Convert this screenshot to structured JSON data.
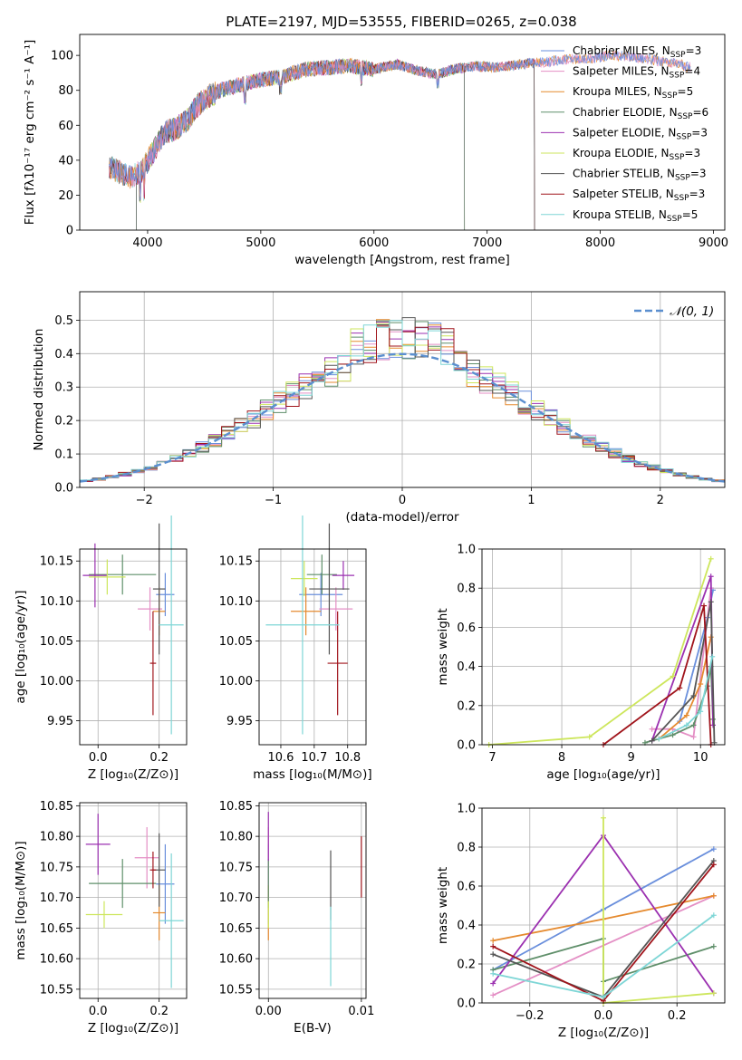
{
  "colors": {
    "Chabrier MILES": "#6a8fdc",
    "Salpeter MILES": "#e48fc5",
    "Kroupa MILES": "#e58a2f",
    "Chabrier ELODIE": "#5f8f6a",
    "Salpeter ELODIE": "#9b30b0",
    "Kroupa ELODIE": "#cde65c",
    "Chabrier STELIB": "#555555",
    "Salpeter STELIB": "#a0141b",
    "Kroupa STELIB": "#7ed6d6",
    "normal": "#5b8fcf"
  },
  "chart_data": [
    {
      "type": "line",
      "title": "PLATE=2197, MJD=53555, FIBERID=0265, z=0.038",
      "xlabel": "wavelength [Angstrom, rest frame]",
      "ylabel": "Flux [fλ10⁻¹⁷ erg cm⁻² s⁻¹ A⁻¹]",
      "xlim": [
        3400,
        9100
      ],
      "ylim": [
        0,
        112
      ],
      "xticks": [
        4000,
        5000,
        6000,
        7000,
        8000,
        9000
      ],
      "yticks": [
        0,
        20,
        40,
        60,
        80,
        100
      ],
      "legend_position": "upper right",
      "legend": [
        {
          "model": "Chabrier MILES",
          "label": "Chabrier MILES, N",
          "nssp": "=3"
        },
        {
          "model": "Salpeter MILES",
          "label": "Salpeter MILES, N",
          "nssp": "=4"
        },
        {
          "model": "Kroupa MILES",
          "label": "Kroupa MILES, N",
          "nssp": "=5"
        },
        {
          "model": "Chabrier ELODIE",
          "label": "Chabrier ELODIE, N",
          "nssp": "=6"
        },
        {
          "model": "Salpeter ELODIE",
          "label": "Salpeter ELODIE, N",
          "nssp": "=3"
        },
        {
          "model": "Kroupa ELODIE",
          "label": "Kroupa ELODIE, N",
          "nssp": "=3"
        },
        {
          "model": "Chabrier STELIB",
          "label": "Chabrier STELIB, N",
          "nssp": "=3"
        },
        {
          "model": "Salpeter STELIB",
          "label": "Salpeter STELIB, N",
          "nssp": "=3"
        },
        {
          "model": "Kroupa STELIB",
          "label": "Kroupa STELIB, N",
          "nssp": "=5"
        }
      ],
      "nssp_subscript": "SSP",
      "spectrum_envelope": {
        "x": [
          3680,
          3750,
          3850,
          3950,
          4050,
          4150,
          4250,
          4350,
          4450,
          4550,
          4650,
          4750,
          4860,
          5000,
          5200,
          5400,
          5600,
          5800,
          6000,
          6200,
          6400,
          6560,
          6700,
          6900,
          7100,
          7300,
          7500,
          7700,
          7900,
          8100,
          8300,
          8500,
          8700,
          8800
        ],
        "y": [
          36,
          33,
          30,
          34,
          45,
          56,
          58,
          63,
          72,
          77,
          80,
          82,
          84,
          86,
          88,
          92,
          93,
          94,
          92,
          95,
          91,
          89,
          92,
          94,
          93,
          95,
          96,
          98,
          98,
          100,
          99,
          97,
          95,
          93
        ]
      },
      "model_ranges": [
        {
          "model": "Kroupa ELODIE",
          "x": [
            3900,
            6800
          ]
        },
        {
          "model": "Salpeter ELODIE",
          "x": [
            3900,
            6800
          ]
        },
        {
          "model": "Chabrier ELODIE",
          "x": [
            3900,
            6800
          ]
        },
        {
          "model": "Kroupa STELIB",
          "x": [
            3650,
            7420
          ]
        },
        {
          "model": "Salpeter STELIB",
          "x": [
            3650,
            7420
          ]
        },
        {
          "model": "Chabrier STELIB",
          "x": [
            3650,
            7420
          ]
        },
        {
          "model": "Kroupa MILES",
          "x": [
            3650,
            8800
          ]
        },
        {
          "model": "Salpeter MILES",
          "x": [
            3650,
            8800
          ]
        },
        {
          "model": "Chabrier MILES",
          "x": [
            3650,
            8800
          ]
        }
      ]
    },
    {
      "type": "histogram",
      "xlabel": "(data-model)/error",
      "ylabel": "Normed distribution",
      "xlim": [
        -2.5,
        2.5
      ],
      "ylim": [
        0,
        0.585
      ],
      "xticks": [
        -2,
        -1,
        0,
        1,
        2
      ],
      "yticks": [
        0.0,
        0.1,
        0.2,
        0.3,
        0.4,
        0.5
      ],
      "legend_position": "upper right",
      "normal_label": "𝒩(0, 1)",
      "bin_width": 0.1,
      "bin_start": -2.5,
      "normal_curve": {
        "mu": 0,
        "sigma": 1
      }
    },
    {
      "type": "scatter",
      "xlabel": "Z [log₁₀(Z/Z⊙)]",
      "ylabel": "age  [log₁₀(age/yr)]",
      "xlim": [
        -0.06,
        0.29
      ],
      "ylim": [
        9.92,
        10.165
      ],
      "xticks": [
        0.0,
        0.2
      ],
      "yticks": [
        9.95,
        10.0,
        10.05,
        10.1,
        10.15
      ],
      "points": [
        {
          "model": "Chabrier MILES",
          "x": 0.22,
          "y": 10.108,
          "xerr": 0.03,
          "yerr": 0.027
        },
        {
          "model": "Salpeter MILES",
          "x": 0.17,
          "y": 10.09,
          "xerr": 0.04,
          "yerr": 0.027
        },
        {
          "model": "Kroupa MILES",
          "x": 0.2,
          "y": 10.087,
          "xerr": 0.02,
          "yerr": 0.03
        },
        {
          "model": "Chabrier ELODIE",
          "x": 0.08,
          "y": 10.133,
          "xerr": 0.11,
          "yerr": 0.025
        },
        {
          "model": "Salpeter ELODIE",
          "x": -0.01,
          "y": 10.132,
          "xerr": 0.04,
          "yerr": 0.04
        },
        {
          "model": "Kroupa ELODIE",
          "x": 0.03,
          "y": 10.13,
          "xerr": 0.06,
          "yerr": 0.022
        },
        {
          "model": "Chabrier STELIB",
          "x": 0.2,
          "y": 10.115,
          "xerr": 0.02,
          "yerr": 0.082
        },
        {
          "model": "Salpeter STELIB",
          "x": 0.18,
          "y": 10.022,
          "xerr": 0.01,
          "yerr": 0.065
        },
        {
          "model": "Kroupa STELIB",
          "x": 0.24,
          "y": 10.07,
          "xerr": 0.04,
          "yerr": 0.137
        }
      ]
    },
    {
      "type": "scatter",
      "xlabel": "mass [log₁₀(M/M⊙)]",
      "ylabel": "",
      "xlim": [
        10.535,
        10.855
      ],
      "ylim": [
        9.92,
        10.165
      ],
      "xticks": [
        10.6,
        10.7,
        10.8
      ],
      "yticks": [
        9.95,
        10.0,
        10.05,
        10.1,
        10.15
      ],
      "points": [
        {
          "model": "Chabrier MILES",
          "x": 10.72,
          "y": 10.108,
          "xerr": 0.065,
          "yerr": 0.027
        },
        {
          "model": "Salpeter MILES",
          "x": 10.765,
          "y": 10.09,
          "xerr": 0.05,
          "yerr": 0.027
        },
        {
          "model": "Kroupa MILES",
          "x": 10.675,
          "y": 10.087,
          "xerr": 0.045,
          "yerr": 0.03
        },
        {
          "model": "Chabrier ELODIE",
          "x": 10.723,
          "y": 10.133,
          "xerr": 0.045,
          "yerr": 0.025
        },
        {
          "model": "Salpeter ELODIE",
          "x": 10.787,
          "y": 10.132,
          "xerr": 0.033,
          "yerr": 0.018
        },
        {
          "model": "Kroupa ELODIE",
          "x": 10.67,
          "y": 10.128,
          "xerr": 0.04,
          "yerr": 0.022
        },
        {
          "model": "Chabrier STELIB",
          "x": 10.745,
          "y": 10.115,
          "xerr": 0.06,
          "yerr": 0.082
        },
        {
          "model": "Salpeter STELIB",
          "x": 10.77,
          "y": 10.022,
          "xerr": 0.03,
          "yerr": 0.065
        },
        {
          "model": "Kroupa STELIB",
          "x": 10.665,
          "y": 10.07,
          "xerr": 0.11,
          "yerr": 0.137
        }
      ]
    },
    {
      "type": "line",
      "xlabel": "age  [log₁₀(age/yr)]",
      "ylabel": "mass weight",
      "xlim": [
        6.85,
        10.35
      ],
      "ylim": [
        0.0,
        1.0
      ],
      "xticks": [
        7,
        8,
        9,
        10
      ],
      "yticks": [
        0.0,
        0.2,
        0.4,
        0.6,
        0.8,
        1.0
      ],
      "series": [
        {
          "model": "Chabrier MILES",
          "x": [
            9.7,
            10.1,
            10.18
          ],
          "y": [
            0.12,
            0.65,
            0.79
          ]
        },
        {
          "model": "Salpeter MILES",
          "x": [
            9.3,
            9.6,
            9.9,
            10.15
          ],
          "y": [
            0.08,
            0.08,
            0.04,
            0.8
          ]
        },
        {
          "model": "Kroupa MILES",
          "x": [
            9.4,
            9.8,
            10.0,
            10.15
          ],
          "y": [
            0.03,
            0.15,
            0.31,
            0.55
          ]
        },
        {
          "model": "Chabrier ELODIE",
          "x": [
            9.2,
            9.6,
            9.9,
            10.1,
            10.15,
            10.18
          ],
          "y": [
            0.01,
            0.05,
            0.1,
            0.3,
            0.4,
            0.13
          ]
        },
        {
          "model": "Salpeter ELODIE",
          "x": [
            9.3,
            10.15,
            10.18
          ],
          "y": [
            0.02,
            0.86,
            0.1
          ]
        },
        {
          "model": "Kroupa ELODIE",
          "x": [
            6.95,
            8.4,
            9.6,
            10.15
          ],
          "y": [
            0.0,
            0.04,
            0.35,
            0.95
          ]
        },
        {
          "model": "Chabrier STELIB",
          "x": [
            9.3,
            9.9,
            10.15,
            10.2
          ],
          "y": [
            0.02,
            0.25,
            0.73,
            0.01
          ]
        },
        {
          "model": "Salpeter STELIB",
          "x": [
            8.6,
            9.7,
            10.05,
            10.15
          ],
          "y": [
            0.0,
            0.29,
            0.71,
            0.0
          ]
        },
        {
          "model": "Kroupa STELIB",
          "x": [
            9.4,
            9.8,
            10.0,
            10.17
          ],
          "y": [
            0.03,
            0.1,
            0.17,
            0.45
          ]
        }
      ]
    },
    {
      "type": "scatter",
      "xlabel": "Z [log₁₀(Z/Z⊙)]",
      "ylabel": "mass [log₁₀(M/M⊙)]",
      "xlim": [
        -0.06,
        0.29
      ],
      "ylim": [
        10.535,
        10.855
      ],
      "xticks": [
        0.0,
        0.2
      ],
      "yticks": [
        10.55,
        10.6,
        10.65,
        10.7,
        10.75,
        10.8,
        10.85
      ],
      "points": [
        {
          "model": "Chabrier MILES",
          "x": 0.22,
          "y": 10.722,
          "xerr": 0.03,
          "yerr": 0.065
        },
        {
          "model": "Salpeter MILES",
          "x": 0.16,
          "y": 10.765,
          "xerr": 0.04,
          "yerr": 0.05
        },
        {
          "model": "Kroupa MILES",
          "x": 0.2,
          "y": 10.675,
          "xerr": 0.02,
          "yerr": 0.045
        },
        {
          "model": "Chabrier ELODIE",
          "x": 0.08,
          "y": 10.723,
          "xerr": 0.11,
          "yerr": 0.04
        },
        {
          "model": "Salpeter ELODIE",
          "x": 0.0,
          "y": 10.787,
          "xerr": 0.04,
          "yerr": 0.05
        },
        {
          "model": "Kroupa ELODIE",
          "x": 0.02,
          "y": 10.672,
          "xerr": 0.06,
          "yerr": 0.022
        },
        {
          "model": "Chabrier STELIB",
          "x": 0.2,
          "y": 10.745,
          "xerr": 0.02,
          "yerr": 0.06
        },
        {
          "model": "Salpeter STELIB",
          "x": 0.18,
          "y": 10.745,
          "xerr": 0.01,
          "yerr": 0.03
        },
        {
          "model": "Kroupa STELIB",
          "x": 0.24,
          "y": 10.662,
          "xerr": 0.04,
          "yerr": 0.11
        }
      ]
    },
    {
      "type": "scatter",
      "xlabel": "E(B-V)",
      "ylabel": "",
      "xlim": [
        -0.001,
        0.0105
      ],
      "ylim": [
        10.535,
        10.855
      ],
      "xticks": [
        0.0,
        0.01
      ],
      "xtick_labels": [
        "0.00",
        "0.01"
      ],
      "yticks": [
        10.55,
        10.6,
        10.65,
        10.7,
        10.75,
        10.8,
        10.85
      ],
      "points": [
        {
          "model": "Chabrier MILES",
          "x": 0.0,
          "y": 10.722,
          "yerr": 0.065
        },
        {
          "model": "Salpeter MILES",
          "x": 0.0,
          "y": 10.765,
          "yerr": 0.05
        },
        {
          "model": "Kroupa MILES",
          "x": 0.0,
          "y": 10.675,
          "yerr": 0.045
        },
        {
          "model": "Chabrier ELODIE",
          "x": 0.0,
          "y": 10.723,
          "yerr": 0.04
        },
        {
          "model": "Salpeter ELODIE",
          "x": 0.0,
          "y": 10.8,
          "yerr": 0.04
        },
        {
          "model": "Kroupa ELODIE",
          "x": 0.0,
          "y": 10.672,
          "yerr": 0.022
        },
        {
          "model": "Chabrier STELIB",
          "x": 0.0067,
          "y": 10.72,
          "yerr": 0.057
        },
        {
          "model": "Salpeter STELIB",
          "x": 0.01,
          "y": 10.75,
          "yerr": 0.05
        },
        {
          "model": "Kroupa STELIB",
          "x": 0.0067,
          "y": 10.62,
          "yerr": 0.065
        }
      ]
    },
    {
      "type": "line",
      "xlabel": "Z [log₁₀(Z/Z⊙)]",
      "ylabel": "mass weight",
      "xlim": [
        -0.33,
        0.33
      ],
      "ylim": [
        0.0,
        1.0
      ],
      "xticks": [
        -0.2,
        0.0,
        0.2
      ],
      "yticks": [
        0.0,
        0.2,
        0.4,
        0.6,
        0.8,
        1.0
      ],
      "series": [
        {
          "model": "Chabrier MILES",
          "x": [
            -0.3,
            0.0,
            0.3
          ],
          "y": [
            0.17,
            0.48,
            0.79
          ]
        },
        {
          "model": "Salpeter MILES",
          "x": [
            -0.3,
            0.3
          ],
          "y": [
            0.04,
            0.55
          ]
        },
        {
          "model": "Kroupa MILES",
          "x": [
            -0.3,
            0.0,
            0.3
          ],
          "y": [
            0.32,
            0.43,
            0.55
          ]
        },
        {
          "model": "Chabrier ELODIE",
          "x": [
            -0.3,
            0.0,
            0.0,
            0.3
          ],
          "y": [
            0.17,
            0.33,
            0.11,
            0.29
          ]
        },
        {
          "model": "Salpeter ELODIE",
          "x": [
            -0.3,
            0.0,
            0.3
          ],
          "y": [
            0.1,
            0.86,
            0.05
          ]
        },
        {
          "model": "Kroupa ELODIE",
          "x": [
            0.0,
            0.0,
            0.3
          ],
          "y": [
            0.95,
            0.0,
            0.05
          ]
        },
        {
          "model": "Chabrier STELIB",
          "x": [
            -0.3,
            0.0,
            0.3
          ],
          "y": [
            0.25,
            0.03,
            0.73
          ]
        },
        {
          "model": "Salpeter STELIB",
          "x": [
            -0.3,
            0.0,
            0.3
          ],
          "y": [
            0.29,
            0.01,
            0.71
          ]
        },
        {
          "model": "Kroupa STELIB",
          "x": [
            -0.3,
            0.0,
            0.3
          ],
          "y": [
            0.15,
            0.03,
            0.45
          ]
        }
      ]
    }
  ]
}
